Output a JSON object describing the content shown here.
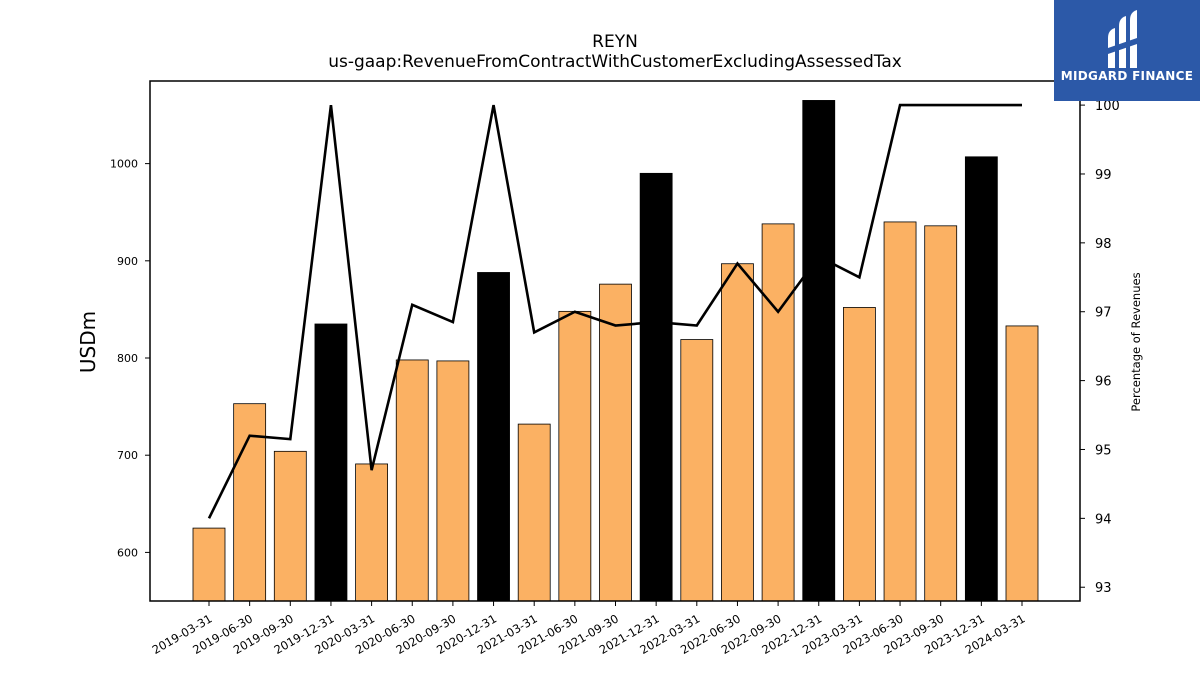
{
  "chart_data": {
    "type": "bar",
    "title": "REYN",
    "subtitle": "us-gaap:RevenueFromContractWithCustomerExcludingAssessedTax",
    "ylabel": "USDm",
    "y2label": "Percentage of Revenues",
    "ylim": [
      550,
      1085
    ],
    "y2lim": [
      92.8,
      100.35
    ],
    "yticks": [
      600,
      700,
      800,
      900,
      1000
    ],
    "y2ticks": [
      93,
      94,
      95,
      96,
      97,
      98,
      99,
      100
    ],
    "categories": [
      "2019-03-31",
      "2019-06-30",
      "2019-09-30",
      "2019-12-31",
      "2020-03-31",
      "2020-06-30",
      "2020-09-30",
      "2020-12-31",
      "2021-03-31",
      "2021-06-30",
      "2021-09-30",
      "2021-12-31",
      "2022-03-31",
      "2022-06-30",
      "2022-09-30",
      "2022-12-31",
      "2023-03-31",
      "2023-06-30",
      "2023-09-30",
      "2023-12-31",
      "2024-03-31"
    ],
    "series": [
      {
        "type": "bar",
        "values": [
          625,
          753,
          704,
          835,
          691,
          798,
          797,
          888,
          732,
          848,
          876,
          990,
          819,
          897,
          938,
          1065,
          852,
          940,
          936,
          1007,
          833
        ],
        "highlight": [
          false,
          false,
          false,
          true,
          false,
          false,
          false,
          true,
          false,
          false,
          false,
          true,
          false,
          false,
          false,
          true,
          false,
          false,
          false,
          true,
          false
        ]
      },
      {
        "type": "line",
        "axis": "right",
        "values": [
          94.0,
          95.2,
          95.15,
          100.0,
          94.7,
          97.1,
          96.85,
          100.0,
          96.7,
          97.0,
          96.8,
          96.85,
          96.8,
          97.7,
          97.0,
          97.8,
          97.5,
          100.0,
          100.0,
          100.0,
          100.0
        ]
      }
    ],
    "colors": {
      "bar": "#fbb163",
      "highlight": "#000000",
      "line": "#000000"
    }
  },
  "logo": {
    "text": "MIDGARD FINANCE",
    "background": "#2c59a8"
  }
}
